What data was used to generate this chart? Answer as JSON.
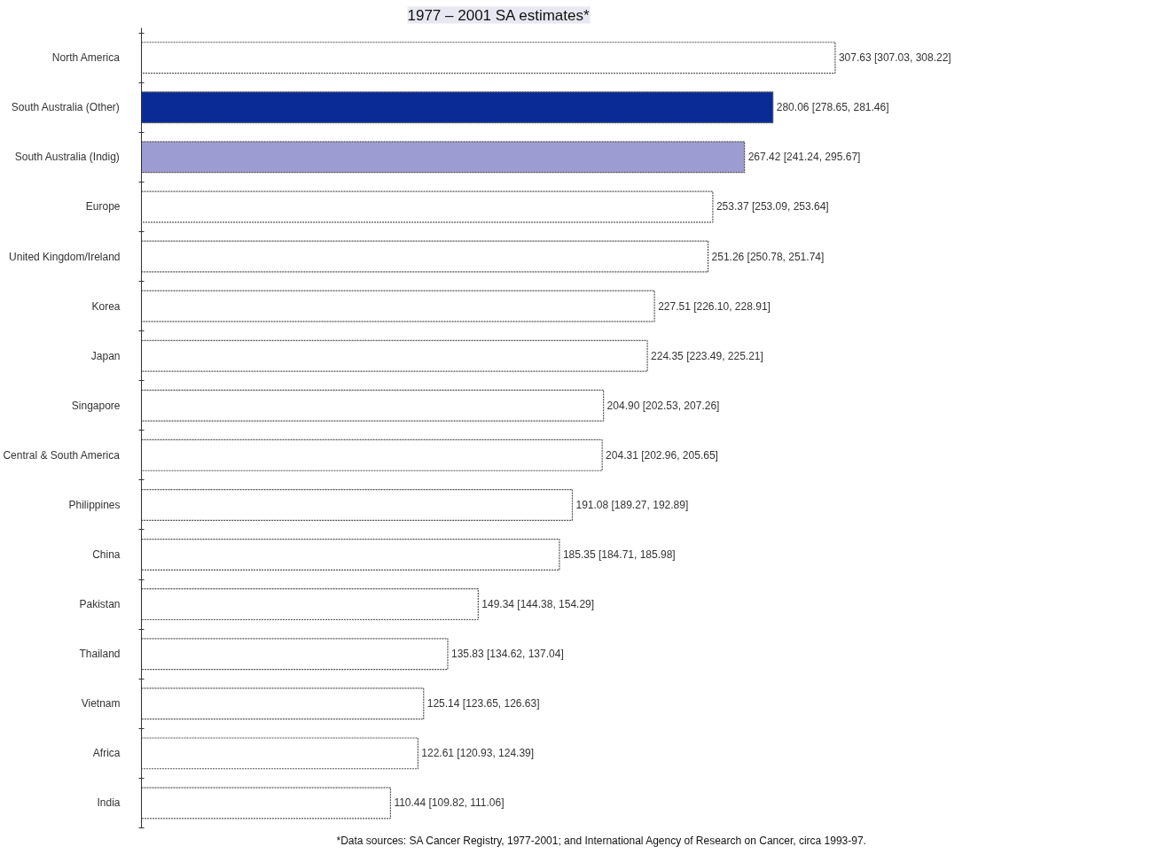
{
  "chart_data": {
    "type": "bar",
    "orientation": "horizontal",
    "title": "1977 – 2001 SA estimates*",
    "categories": [
      "North America",
      "South Australia (Other)",
      "South Australia (Indig)",
      "Europe",
      "United Kingdom/Ireland",
      "Korea",
      "Japan",
      "Singapore",
      "Central & South America",
      "Philippines",
      "China",
      "Pakistan",
      "Thailand",
      "Vietnam",
      "Africa",
      "India"
    ],
    "values": [
      307.63,
      280.06,
      267.42,
      253.37,
      251.26,
      227.51,
      224.35,
      204.9,
      204.31,
      191.08,
      185.35,
      149.34,
      135.83,
      125.14,
      122.61,
      110.44
    ],
    "colors": [
      "#ffffff",
      "#0a2a96",
      "#9c9cd2",
      "#ffffff",
      "#ffffff",
      "#ffffff",
      "#ffffff",
      "#ffffff",
      "#ffffff",
      "#ffffff",
      "#ffffff",
      "#ffffff",
      "#ffffff",
      "#ffffff",
      "#ffffff",
      "#ffffff"
    ],
    "value_labels": [
      "307.63 [307.03, 308.22]",
      "280.06 [278.65, 281.46]",
      "267.42 [241.24, 295.67]",
      "253.37 [253.09, 253.64]",
      "251.26 [250.78, 251.74]",
      "227.51 [226.10, 228.91]",
      "224.35 [223.49, 225.21]",
      "204.90 [202.53, 207.26]",
      "204.31 [202.96, 205.65]",
      "191.08 [189.27, 192.89]",
      "185.35 [184.71, 185.98]",
      "149.34 [144.38, 154.29]",
      "135.83 [134.62, 137.04]",
      "125.14 [123.65, 126.63]",
      "122.61 [120.93, 124.39]",
      "110.44 [109.82, 111.06]"
    ],
    "tick_labels": "y",
    "annotations": [
      "*Data sources: SA Cancer Registry, 1977-2001; and International Agency of Research on Cancer, circa 1993-97."
    ]
  }
}
